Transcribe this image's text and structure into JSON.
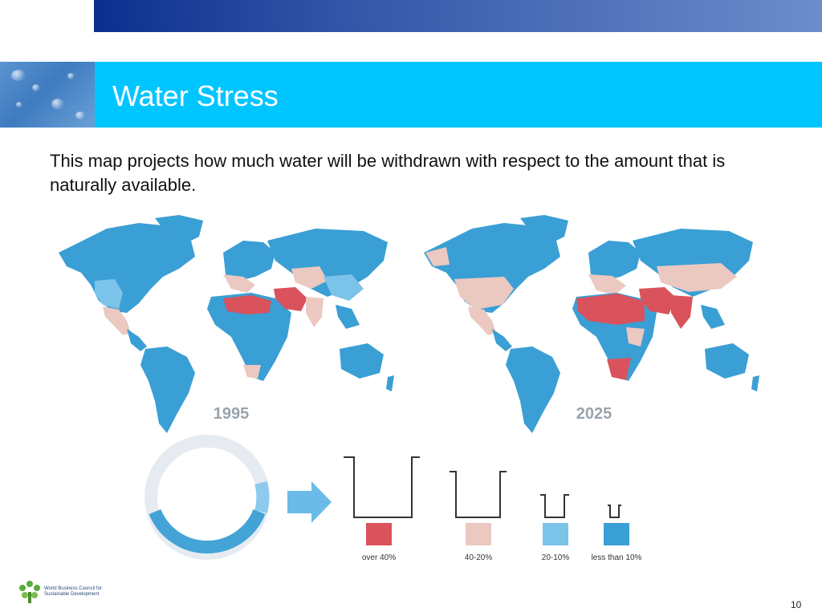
{
  "slide": {
    "title": "Water Stress",
    "description": "This map projects how much water will be withdrawn with respect to the amount that is naturally available.",
    "page_number": "10"
  },
  "maps": [
    {
      "year": "1995"
    },
    {
      "year": "2025"
    }
  ],
  "legend": {
    "items": [
      {
        "label": "over 40%",
        "color": "#d9525c"
      },
      {
        "label": "40-20%",
        "color": "#ebc8c0"
      },
      {
        "label": "20-10%",
        "color": "#7cc3ea"
      },
      {
        "label": "less than 10%",
        "color": "#3a9fd4"
      }
    ]
  },
  "footer": {
    "org_line1": "World Business Council for",
    "org_line2": "Sustainable Development"
  },
  "colors": {
    "title_band": "#00c5ff",
    "top_bar": "#0b2f8e",
    "land": "#3a9fd4"
  }
}
